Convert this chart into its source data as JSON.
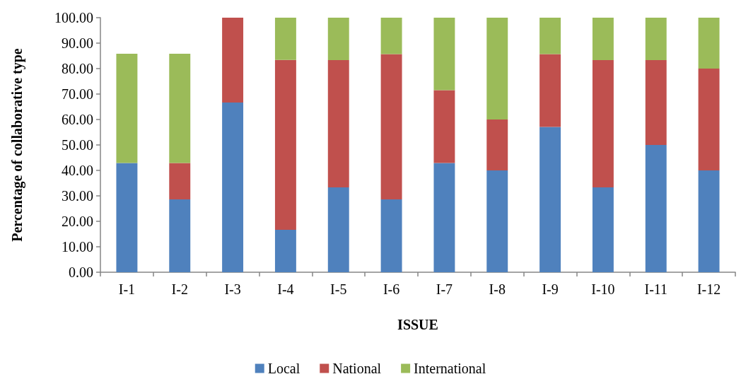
{
  "chart_data": {
    "type": "bar",
    "stacked": true,
    "xlabel": "ISSUE",
    "ylabel": "Percentage of collaborative type",
    "categories": [
      "I-1",
      "I-2",
      "I-3",
      "I-4",
      "I-5",
      "I-6",
      "I-7",
      "I-8",
      "I-9",
      "I-10",
      "I-11",
      "I-12"
    ],
    "series": [
      {
        "name": "Local",
        "color": "#4f81bd",
        "values": [
          42.9,
          28.6,
          66.7,
          16.7,
          33.3,
          28.6,
          42.9,
          40,
          57.1,
          33.3,
          50,
          40
        ]
      },
      {
        "name": "National",
        "color": "#c0504d",
        "values": [
          0,
          14.3,
          33.3,
          66.7,
          50,
          57.1,
          28.6,
          20,
          28.6,
          50,
          33.3,
          40
        ]
      },
      {
        "name": "International",
        "color": "#9bbb59",
        "values": [
          42.9,
          42.9,
          0,
          16.7,
          16.7,
          14.3,
          28.6,
          40,
          14.3,
          16.7,
          16.7,
          20
        ]
      }
    ],
    "ylim": [
      0,
      100
    ],
    "yticks": [
      {
        "value": 0,
        "label": "0.00"
      },
      {
        "value": 10,
        "label": "10.00"
      },
      {
        "value": 20,
        "label": "20.00"
      },
      {
        "value": 30,
        "label": "30.00"
      },
      {
        "value": 40,
        "label": "40.00"
      },
      {
        "value": 50,
        "label": "50.00"
      },
      {
        "value": 60,
        "label": "60.00"
      },
      {
        "value": 70,
        "label": "70.00"
      },
      {
        "value": 80,
        "label": "80.00"
      },
      {
        "value": 90,
        "label": "90.00"
      },
      {
        "value": 100,
        "label": "100.00"
      }
    ],
    "grid": false,
    "legend": "bottom"
  }
}
